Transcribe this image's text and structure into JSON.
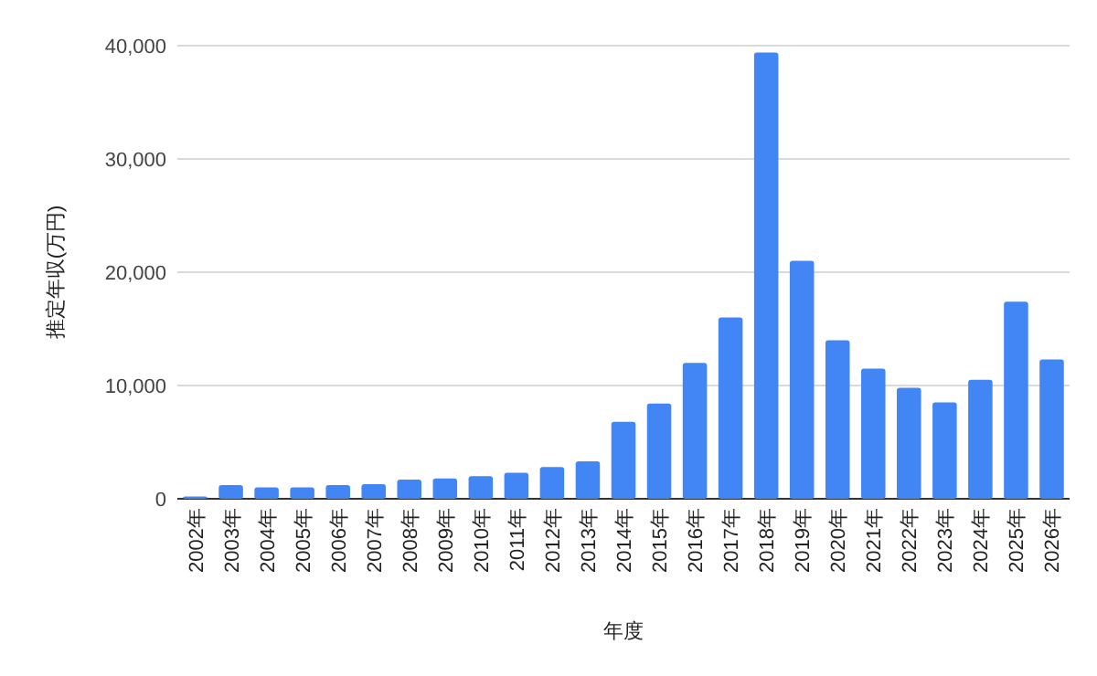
{
  "chart_data": {
    "type": "bar",
    "xlabel": "年度",
    "ylabel": "推定年収(万円)",
    "categories": [
      "2002年",
      "2003年",
      "2004年",
      "2005年",
      "2006年",
      "2007年",
      "2008年",
      "2009年",
      "2010年",
      "2011年",
      "2012年",
      "2013年",
      "2014年",
      "2015年",
      "2016年",
      "2017年",
      "2018年",
      "2019年",
      "2020年",
      "2021年",
      "2022年",
      "2023年",
      "2024年",
      "2025年",
      "2026年"
    ],
    "values": [
      200,
      1200,
      1000,
      1000,
      1200,
      1300,
      1700,
      1800,
      2000,
      2300,
      2800,
      3300,
      6800,
      8400,
      12000,
      16000,
      39400,
      21000,
      14000,
      11500,
      9800,
      8500,
      10500,
      17400,
      12300
    ],
    "color": "#4285f4",
    "ylim": [
      0,
      40000
    ],
    "yticks": [
      0,
      {
        "value": 10000,
        "label": "10,000"
      },
      {
        "value": 20000,
        "label": "20,000"
      },
      {
        "value": 30000,
        "label": "30,000"
      },
      {
        "value": 40000,
        "label": "40,000"
      }
    ],
    "grid": "y"
  }
}
